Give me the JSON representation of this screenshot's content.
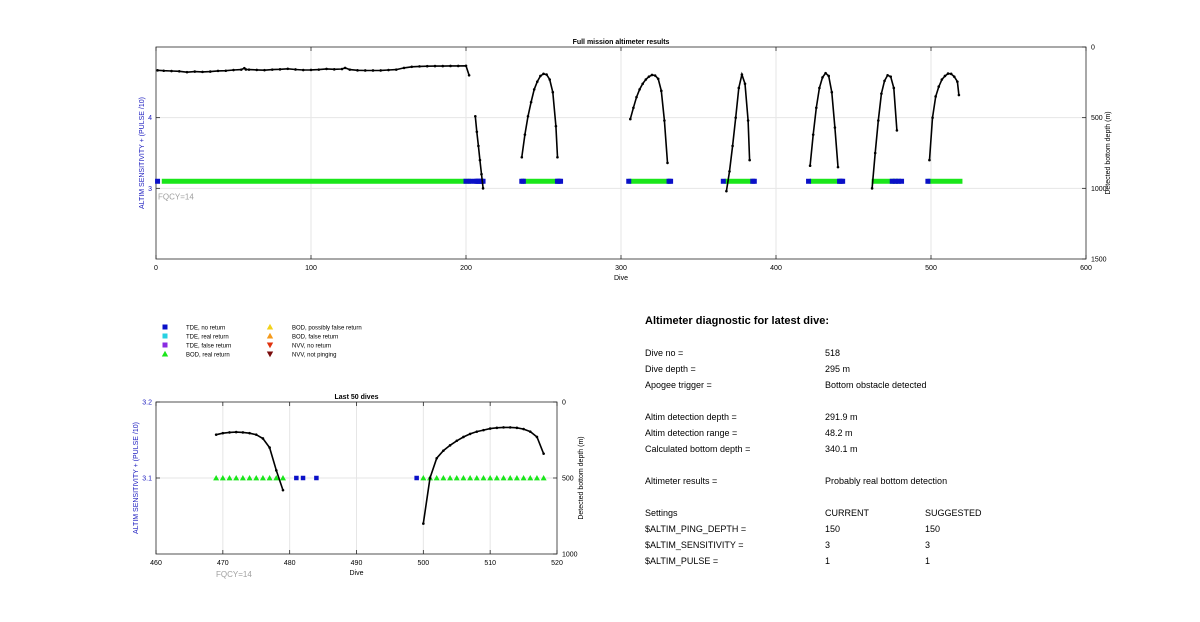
{
  "chart_data": [
    {
      "type": "scatter",
      "title": "Full mission altimeter results",
      "xlabel": "Dive",
      "ylabel_left": "ALTIM SENSITIVITY + (PULSE /10)",
      "ylabel_right": "Detected bottom depth (m)",
      "xlim": [
        0,
        600
      ],
      "ylim_left": [
        2,
        5
      ],
      "ylim_right": [
        1500,
        0
      ],
      "x_ticks": [
        "0",
        "100",
        "200",
        "300",
        "400",
        "500",
        "600"
      ],
      "y_left_ticks": [
        "3",
        "4"
      ],
      "y_right_ticks": [
        "0",
        "500",
        "1000",
        "1500"
      ],
      "annotation": "FQCY=14",
      "grid": true,
      "settings_level": 3.1,
      "bod_real_return_ranges": [
        [
          5,
          202
        ],
        [
          238,
          258
        ],
        [
          306,
          330
        ],
        [
          368,
          383
        ],
        [
          423,
          440
        ],
        [
          463,
          478
        ],
        [
          499,
          519
        ]
      ],
      "tde_no_return_dives": [
        1,
        200,
        203,
        206,
        207,
        208,
        209,
        210,
        211,
        236,
        237,
        259,
        260,
        261,
        305,
        331,
        332,
        366,
        385,
        386,
        421,
        441,
        442,
        443,
        475,
        477,
        479,
        481,
        498
      ],
      "bottom_depth_segments": [
        {
          "x": [
            1,
            5,
            10,
            15,
            20,
            25,
            30,
            35,
            40,
            45,
            50,
            55,
            57,
            58,
            60,
            65,
            70,
            75,
            80,
            85,
            90,
            95,
            100,
            105,
            110,
            115,
            120,
            122,
            125,
            130,
            135,
            140,
            145,
            150,
            155,
            160,
            165,
            170,
            175,
            180,
            185,
            190,
            195,
            200,
            202
          ],
          "y": [
            165,
            168,
            170,
            172,
            178,
            174,
            176,
            174,
            169,
            168,
            163,
            160,
            150,
            159,
            160,
            162,
            164,
            160,
            158,
            154,
            159,
            163,
            162,
            160,
            155,
            158,
            156,
            148,
            160,
            165,
            166,
            166,
            166,
            163,
            160,
            148,
            140,
            137,
            136,
            135,
            135,
            134,
            134,
            133,
            200
          ]
        },
        {
          "x": [
            206,
            207,
            208,
            209,
            210,
            211
          ],
          "y": [
            490,
            600,
            700,
            800,
            900,
            1000
          ]
        },
        {
          "x": [
            236,
            238,
            240,
            242,
            244,
            246,
            248,
            250,
            252,
            254,
            256,
            258,
            259
          ],
          "y": [
            780,
            620,
            490,
            390,
            300,
            245,
            205,
            190,
            195,
            230,
            320,
            560,
            780
          ]
        },
        {
          "x": [
            306,
            308,
            310,
            312,
            314,
            316,
            318,
            320,
            322,
            324,
            326,
            328,
            330
          ],
          "y": [
            510,
            430,
            355,
            300,
            260,
            230,
            210,
            198,
            202,
            225,
            310,
            520,
            820
          ]
        },
        {
          "x": [
            368,
            370,
            372,
            374,
            376,
            378,
            380,
            382,
            383
          ],
          "y": [
            1020,
            880,
            700,
            500,
            290,
            195,
            260,
            520,
            800
          ]
        },
        {
          "x": [
            422,
            424,
            426,
            428,
            430,
            432,
            434,
            436,
            438,
            440
          ],
          "y": [
            840,
            620,
            430,
            290,
            215,
            185,
            205,
            320,
            570,
            850
          ]
        },
        {
          "x": [
            462,
            464,
            466,
            468,
            470,
            472,
            474,
            476,
            478
          ],
          "y": [
            1000,
            750,
            520,
            330,
            240,
            200,
            210,
            290,
            590
          ]
        },
        {
          "x": [
            499,
            501,
            503,
            505,
            507,
            509,
            511,
            513,
            515,
            517,
            518
          ],
          "y": [
            800,
            500,
            350,
            280,
            230,
            205,
            188,
            190,
            210,
            245,
            340
          ]
        }
      ]
    },
    {
      "type": "scatter",
      "title": "Last 50 dives",
      "xlabel": "Dive",
      "ylabel_left": "ALTIM SENSITIVITY + (PULSE /10)",
      "ylabel_right": "Detected bottom depth (m)",
      "xlim": [
        460,
        520
      ],
      "ylim_left": [
        3,
        3.2
      ],
      "ylim_right": [
        1000,
        0
      ],
      "x_ticks": [
        "460",
        "470",
        "480",
        "490",
        "500",
        "510",
        "520"
      ],
      "y_left_ticks": [
        "3.1",
        "3.2"
      ],
      "y_right_ticks": [
        "0",
        "500",
        "1000"
      ],
      "annotation": "FQCY=14",
      "grid": true,
      "settings_level": 3.1,
      "bod_real_return_dives": [
        469,
        470,
        471,
        472,
        473,
        474,
        475,
        476,
        477,
        478,
        479,
        500,
        501,
        502,
        503,
        504,
        505,
        506,
        507,
        508,
        509,
        510,
        511,
        512,
        513,
        514,
        515,
        516,
        517,
        518
      ],
      "tde_no_return_dives": [
        481,
        482,
        484,
        499
      ],
      "bottom_depth_segments": [
        {
          "x": [
            469,
            470,
            471,
            472,
            473,
            474,
            475,
            476,
            477,
            478,
            479
          ],
          "y": [
            215,
            205,
            200,
            198,
            200,
            205,
            215,
            240,
            300,
            450,
            580
          ]
        },
        {
          "x": [
            500,
            501,
            502,
            503,
            504,
            505,
            506,
            507,
            508,
            509,
            510,
            511,
            512,
            513,
            514,
            515,
            516,
            517,
            518
          ],
          "y": [
            800,
            500,
            370,
            320,
            285,
            255,
            230,
            210,
            195,
            185,
            175,
            170,
            167,
            167,
            170,
            178,
            195,
            230,
            340
          ]
        }
      ]
    }
  ],
  "legend": [
    {
      "label": "TDE, no return",
      "marker": "square",
      "color": "#0a10c8"
    },
    {
      "label": "TDE, real return",
      "marker": "square",
      "color": "#27d1e2"
    },
    {
      "label": "TDE, false return",
      "marker": "square",
      "color": "#8a2be2"
    },
    {
      "label": "BOD, real return",
      "marker": "triangle-up",
      "color": "#1ae61a"
    },
    {
      "label": "BOD, possibly false return",
      "marker": "triangle-up",
      "color": "#f2d21a"
    },
    {
      "label": "BOD, false return",
      "marker": "triangle-up",
      "color": "#f59a1a"
    },
    {
      "label": "NVV, no return",
      "marker": "triangle-down",
      "color": "#e0320e"
    },
    {
      "label": "NVV, not pinging",
      "marker": "triangle-down",
      "color": "#7a0c0c"
    }
  ],
  "diagnostic": {
    "title": "Altimeter diagnostic for latest dive:",
    "summary_rows": [
      {
        "label": "Dive no =",
        "value": "518"
      },
      {
        "label": "Dive depth =",
        "value": "295 m"
      },
      {
        "label": "Apogee trigger =",
        "value": "Bottom obstacle detected"
      }
    ],
    "detection_rows": [
      {
        "label": "Altim detection depth =",
        "value": "291.9 m"
      },
      {
        "label": "Altim detection range =",
        "value": "48.2 m"
      },
      {
        "label": "Calculated bottom depth =",
        "value": "340.1 m"
      }
    ],
    "results": {
      "label": "Altimeter results =",
      "value": "Probably real bottom detection"
    },
    "settings_header": [
      "Settings",
      "CURRENT",
      "SUGGESTED"
    ],
    "settings_rows": [
      {
        "name": "$ALTIM_PING_DEPTH =",
        "current": "150",
        "suggested": "150"
      },
      {
        "name": "$ALTIM_SENSITIVITY =",
        "current": "3",
        "suggested": "3"
      },
      {
        "name": "$ALTIM_PULSE =",
        "current": "1",
        "suggested": "1"
      }
    ]
  },
  "colors": {
    "tde_no_return": "#0a10c8",
    "bod_real_return": "#1ae61a",
    "bottom_line": "#000000",
    "left_axis_label": "#2020c0",
    "annotation": "#a0a0a0",
    "grid": "#e6e6e6"
  }
}
